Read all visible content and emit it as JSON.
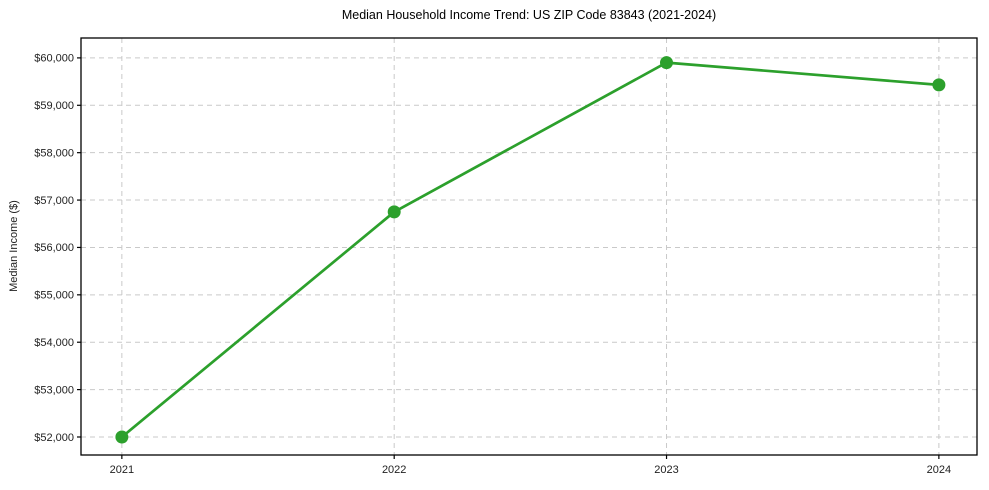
{
  "chart_data": {
    "type": "line",
    "title": "Median Household Income Trend: US ZIP Code 83843 (2021-2024)",
    "xlabel": "",
    "ylabel": "Median Income ($)",
    "x": [
      2021,
      2022,
      2023,
      2024
    ],
    "y": [
      52000,
      56750,
      59900,
      59430
    ],
    "xticks": [
      {
        "value": 2021,
        "label": "2021"
      },
      {
        "value": 2022,
        "label": "2022"
      },
      {
        "value": 2023,
        "label": "2023"
      },
      {
        "value": 2024,
        "label": "2024"
      }
    ],
    "yticks": [
      {
        "value": 52000,
        "label": "$52,000"
      },
      {
        "value": 53000,
        "label": "$53,000"
      },
      {
        "value": 54000,
        "label": "$54,000"
      },
      {
        "value": 55000,
        "label": "$55,000"
      },
      {
        "value": 56000,
        "label": "$56,000"
      },
      {
        "value": 57000,
        "label": "$57,000"
      },
      {
        "value": 58000,
        "label": "$58,000"
      },
      {
        "value": 59000,
        "label": "$59,000"
      },
      {
        "value": 60000,
        "label": "$60,000"
      }
    ],
    "xlim": [
      2020.85,
      2024.14
    ],
    "ylim": [
      51620,
      60420
    ],
    "grid": true,
    "grid_style": "dashed",
    "legend": false,
    "marker": "circle",
    "colors": {
      "line": "#2ca02c",
      "grid": "#c9c9c9",
      "axis": "#000000",
      "text": "#222222",
      "background": "#ffffff"
    }
  }
}
